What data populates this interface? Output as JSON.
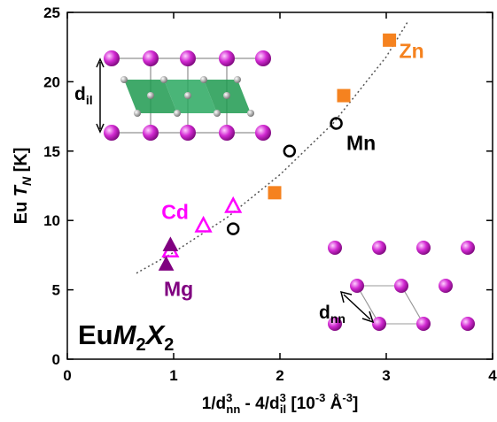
{
  "chart_data": {
    "type": "scatter",
    "xlabel": [
      "1/d",
      "3",
      "nn",
      " - 4/d",
      "3",
      "il",
      " [10",
      "-3",
      " Å",
      "-3",
      "]"
    ],
    "ylabel": [
      "Eu ",
      "T",
      "N",
      " [K]"
    ],
    "annotations": {
      "compound": [
        "Eu",
        "M",
        "2",
        "X",
        "2"
      ],
      "d_il": [
        "d",
        "il"
      ],
      "d_nn": [
        "d",
        "nn"
      ]
    },
    "xlim": [
      0,
      4
    ],
    "ylim": [
      0,
      25
    ],
    "xticks": [
      0,
      1,
      2,
      3,
      4
    ],
    "yticks": [
      0,
      5,
      10,
      15,
      20,
      25
    ],
    "series": [
      {
        "name": "Mn",
        "color": "#000000",
        "marker": "circle",
        "filled": false,
        "x": [
          1.56,
          2.09,
          2.53
        ],
        "values": [
          9.4,
          15.0,
          17.0
        ]
      },
      {
        "name": "Zn",
        "color": "#f5821f",
        "marker": "square",
        "filled": true,
        "x": [
          1.95,
          2.6,
          3.03
        ],
        "values": [
          12.0,
          19.0,
          23.0
        ]
      },
      {
        "name": "Cd",
        "color": "#ff00ff",
        "marker": "triangle",
        "filled": false,
        "x": [
          0.97,
          1.28,
          1.56
        ],
        "values": [
          7.8,
          9.6,
          11.0
        ]
      },
      {
        "name": "Mg",
        "color": "#800080",
        "marker": "triangle",
        "filled": true,
        "x": [
          0.97,
          0.93
        ],
        "values": [
          8.2,
          6.8
        ]
      }
    ],
    "fit": {
      "color": "#555555",
      "x": [
        0.65,
        1.0,
        1.5,
        2.0,
        2.5,
        3.0,
        3.2
      ],
      "values": [
        6.2,
        7.7,
        10.2,
        13.3,
        17.0,
        21.8,
        24.3
      ]
    }
  }
}
